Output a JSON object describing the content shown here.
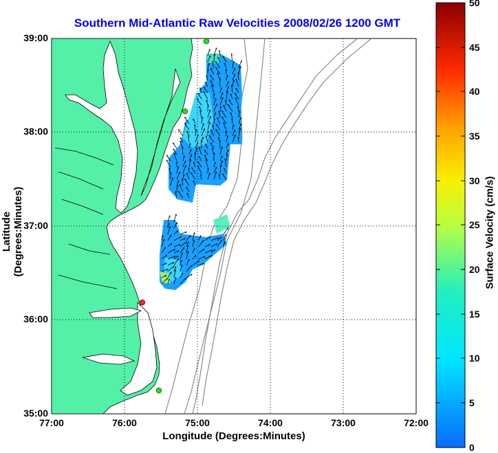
{
  "title": "Southern Mid-Atlantic Raw Velocities 2008/02/26 1200 GMT",
  "xaxis": {
    "label": "Longitude (Degrees:Minutes)",
    "ticks": [
      "77:00",
      "76:00",
      "75:00",
      "74:00",
      "73:00",
      "72:00"
    ]
  },
  "yaxis": {
    "label": "Latitude (Degrees:Minutes)",
    "ticks": [
      "39:00",
      "38:00",
      "37:00",
      "36:00",
      "35:00"
    ]
  },
  "colorbar": {
    "label": "Surface Velocity (cm/s)",
    "ticks": [
      "50",
      "45",
      "40",
      "35",
      "30",
      "25",
      "20",
      "15",
      "10",
      "5",
      "0"
    ],
    "range": [
      0,
      50
    ]
  },
  "colors": {
    "land": "#55f0a8",
    "title": "#0000ee",
    "gridline": "#000000",
    "bathymetry": "#8a8a8a"
  },
  "stations": [
    {
      "marker": "green",
      "lon": -74.9,
      "lat": 38.98
    },
    {
      "marker": "green",
      "lon": -75.17,
      "lat": 38.23
    },
    {
      "marker": "red",
      "lon": -75.72,
      "lat": 36.18
    },
    {
      "marker": "green",
      "lon": -75.47,
      "lat": 35.25
    }
  ],
  "chart_data": {
    "type": "map",
    "xlim": [
      -77,
      -72
    ],
    "ylim": [
      35,
      39
    ],
    "grid": true,
    "vector_regions": [
      {
        "lon_range": [
          -75.4,
          -74.4
        ],
        "lat_range": [
          37.3,
          38.9
        ],
        "speed_cm_s": 8
      },
      {
        "lon_range": [
          -75.6,
          -74.5
        ],
        "lat_range": [
          36.3,
          37.1
        ],
        "speed_cm_s": 6
      }
    ]
  }
}
